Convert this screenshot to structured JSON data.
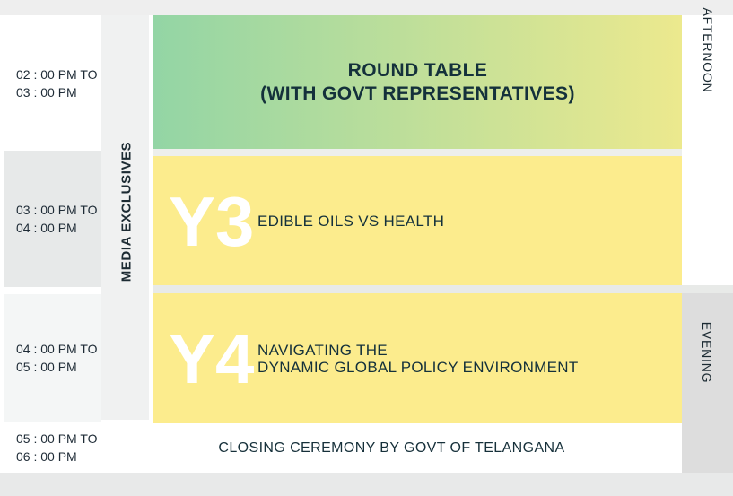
{
  "agenda": {
    "time_column": [
      {
        "line1": "02 : 00 PM TO",
        "line2": "03 : 00 PM"
      },
      {
        "line1": "03 : 00 PM TO",
        "line2": "04 : 00 PM"
      },
      {
        "line1": "04 : 00 PM TO",
        "line2": "05 : 00 PM"
      },
      {
        "line1": "05 : 00 PM TO",
        "line2": "06 : 00 PM"
      }
    ],
    "track_label": "MEDIA EXCLUSIVES",
    "periods": {
      "afternoon": "AFTERNOON",
      "evening": "EVENING"
    },
    "sessions": {
      "round_table": {
        "title_line1": "ROUND TABLE",
        "title_line2": "(WITH GOVT REPRESENTATIVES)"
      },
      "y3": {
        "code": "Y3",
        "title": "EDIBLE OILS VS HEALTH"
      },
      "y4": {
        "code": "Y4",
        "title_line1": "NAVIGATING THE",
        "title_line2": "DYNAMIC GLOBAL POLICY ENVIRONMENT"
      },
      "closing": {
        "title": "CLOSING CEREMONY BY GOVT OF TELANGANA"
      }
    },
    "colors": {
      "gradient_start": "#93D5A5",
      "gradient_end": "#ECE98E",
      "session_yellow": "#FCEC8D",
      "evening_block_gray": "#DDDDDD",
      "track_column_gray": "#F0F1F1",
      "time_slot2_gray": "#E7E9E9",
      "time_slot3_gray": "#F4F6F6",
      "top_strip_gray": "#EEEEEE",
      "bottom_strip_gray": "#E8E9E9",
      "dark_text": "#17313A",
      "code_text": "#FFFFFF"
    }
  }
}
